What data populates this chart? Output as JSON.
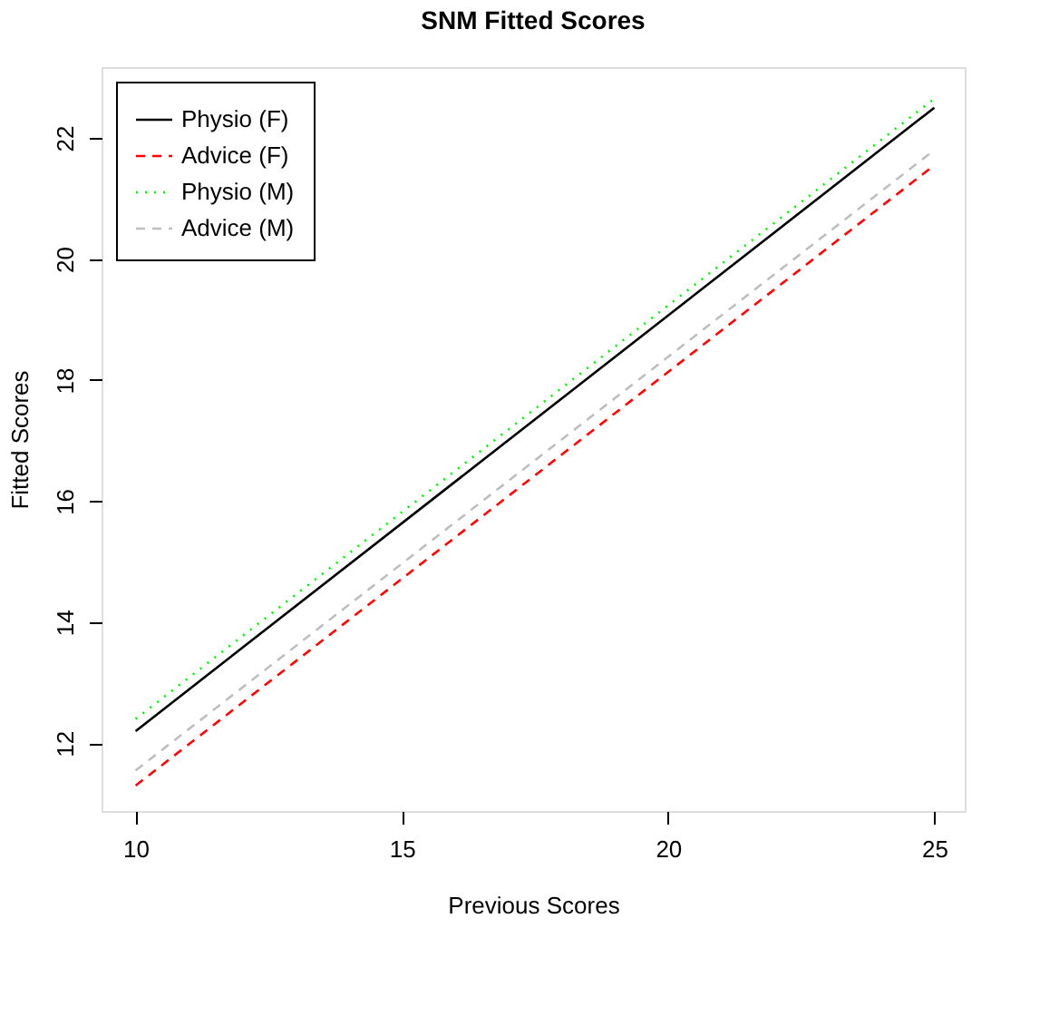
{
  "chart_data": {
    "type": "line",
    "title": "SNM Fitted Scores",
    "xlabel": "Previous Scores",
    "ylabel": "Fitted Scores",
    "x": [
      10,
      25
    ],
    "series": [
      {
        "name": "Physio (F)",
        "color": "#000000",
        "values": [
          12.2,
          22.5
        ],
        "line_style": "solid"
      },
      {
        "name": "Advice (F)",
        "color": "#ff0000",
        "values": [
          11.3,
          21.55
        ],
        "line_style": "dashed"
      },
      {
        "name": "Physio (M)",
        "color": "#00ee00",
        "values": [
          12.4,
          22.65
        ],
        "line_style": "dotted"
      },
      {
        "name": "Advice (M)",
        "color": "#bebebe",
        "values": [
          11.55,
          21.8
        ],
        "line_style": "dashed"
      }
    ],
    "xlim": [
      9.36,
      25.57
    ],
    "ylim": [
      10.88,
      23.17
    ],
    "xticks": [
      10,
      15,
      20,
      25
    ],
    "yticks": [
      12,
      14,
      16,
      18,
      20,
      22
    ],
    "grid": false,
    "legend": "top left",
    "marker": "none"
  }
}
